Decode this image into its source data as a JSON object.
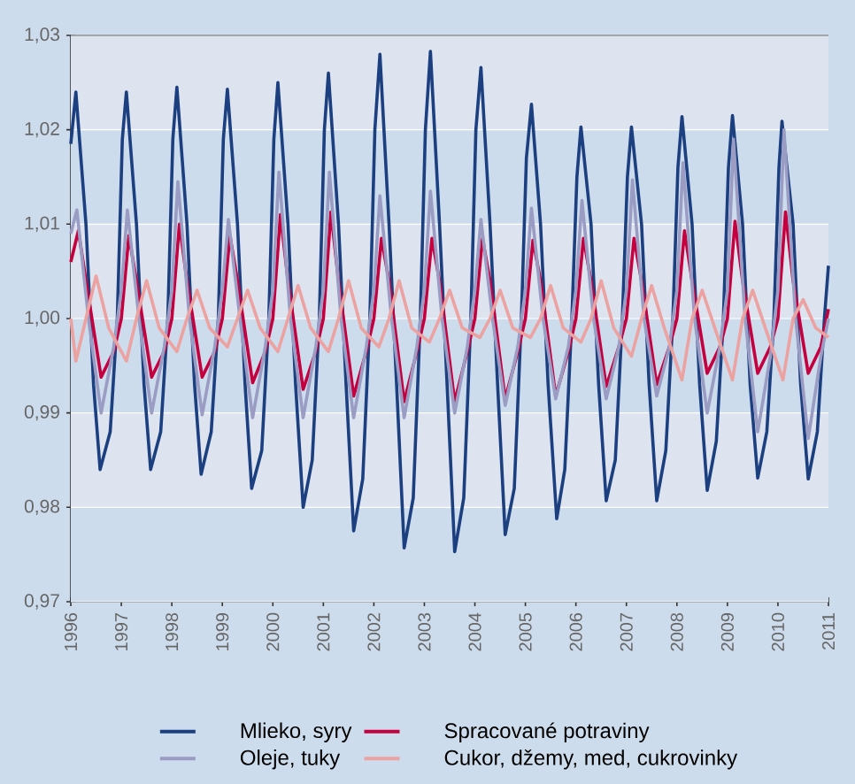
{
  "chart_data": {
    "type": "line",
    "xlim": [
      1996,
      2011
    ],
    "xticks": [
      1996,
      1997,
      1998,
      1999,
      2000,
      2001,
      2002,
      2003,
      2004,
      2005,
      2006,
      2007,
      2008,
      2009,
      2010,
      2011
    ],
    "ylim": [
      0.97,
      1.03
    ],
    "yticks": [
      {
        "value": 0.97,
        "label": "0,97"
      },
      {
        "value": 0.98,
        "label": "0,98"
      },
      {
        "value": 0.99,
        "label": "0,99"
      },
      {
        "value": 1.0,
        "label": "1,00"
      },
      {
        "value": 1.01,
        "label": "1,01"
      },
      {
        "value": 1.02,
        "label": "1,02"
      },
      {
        "value": 1.03,
        "label": "1,03"
      }
    ],
    "grid": "y",
    "legend": "bottom",
    "marker": "none",
    "line_style": "solid",
    "series": [
      {
        "name": "Mlieko, syry",
        "color": "#1b3f7f",
        "x": [
          1996.0,
          1996.1,
          1996.3,
          1996.45,
          1996.58,
          1996.78,
          1996.92,
          1997.02,
          1997.1,
          1997.3,
          1997.45,
          1997.58,
          1997.78,
          1997.92,
          1998.02,
          1998.1,
          1998.3,
          1998.45,
          1998.58,
          1998.78,
          1998.92,
          1999.02,
          1999.1,
          1999.3,
          1999.45,
          1999.58,
          1999.78,
          1999.92,
          2000.02,
          2000.1,
          2000.3,
          2000.45,
          2000.6,
          2000.78,
          2000.92,
          2001.02,
          2001.1,
          2001.3,
          2001.45,
          2001.6,
          2001.78,
          2001.92,
          2002.02,
          2002.12,
          2002.3,
          2002.45,
          2002.6,
          2002.78,
          2002.92,
          2003.02,
          2003.12,
          2003.3,
          2003.45,
          2003.6,
          2003.78,
          2003.92,
          2004.02,
          2004.12,
          2004.3,
          2004.45,
          2004.6,
          2004.78,
          2004.92,
          2005.02,
          2005.12,
          2005.3,
          2005.45,
          2005.62,
          2005.78,
          2005.92,
          2006.02,
          2006.1,
          2006.3,
          2006.45,
          2006.6,
          2006.78,
          2006.92,
          2007.02,
          2007.1,
          2007.3,
          2007.45,
          2007.6,
          2007.78,
          2007.92,
          2008.02,
          2008.1,
          2008.3,
          2008.45,
          2008.6,
          2008.78,
          2008.92,
          2009.02,
          2009.1,
          2009.3,
          2009.45,
          2009.6,
          2009.78,
          2009.92,
          2010.02,
          2010.08,
          2010.3,
          2010.45,
          2010.6,
          2010.78,
          2010.92,
          2011.0
        ],
        "values": [
          1.0185,
          1.024,
          1.01,
          0.993,
          0.984,
          0.988,
          1.0,
          1.019,
          1.024,
          1.01,
          0.993,
          0.984,
          0.988,
          1.0,
          1.019,
          1.0245,
          1.01,
          0.993,
          0.9835,
          0.988,
          1.0,
          1.019,
          1.0243,
          1.01,
          0.993,
          0.982,
          0.986,
          1.0,
          1.019,
          1.025,
          1.01,
          0.993,
          0.98,
          0.985,
          1.0,
          1.02,
          1.026,
          1.01,
          0.993,
          0.9775,
          0.983,
          1.0,
          1.02,
          1.028,
          1.01,
          0.993,
          0.9757,
          0.981,
          1.0,
          1.02,
          1.0283,
          1.01,
          0.993,
          0.9753,
          0.981,
          1.0,
          1.02,
          1.0266,
          1.01,
          0.993,
          0.9771,
          0.982,
          1.0,
          1.017,
          1.0227,
          1.01,
          0.993,
          0.9788,
          0.984,
          1.0,
          1.015,
          1.0203,
          1.01,
          0.993,
          0.9807,
          0.985,
          1.0,
          1.015,
          1.0203,
          1.01,
          0.993,
          0.9807,
          0.986,
          1.0,
          1.016,
          1.0214,
          1.01,
          0.993,
          0.9818,
          0.987,
          1.0,
          1.016,
          1.0215,
          1.01,
          0.993,
          0.9831,
          0.988,
          1.0,
          1.016,
          1.0209,
          1.01,
          0.993,
          0.983,
          0.988,
          1.0,
          1.0056
        ]
      },
      {
        "name": "Oleje, tuky",
        "color": "#9a9cc4",
        "x": [
          1996.0,
          1996.12,
          1996.35,
          1996.6,
          1996.85,
          1997.0,
          1997.12,
          1997.35,
          1997.6,
          1997.85,
          1998.0,
          1998.12,
          1998.35,
          1998.6,
          1998.85,
          1999.0,
          1999.12,
          1999.35,
          1999.6,
          1999.85,
          2000.0,
          2000.12,
          2000.35,
          2000.6,
          2000.85,
          2001.0,
          2001.12,
          2001.35,
          2001.6,
          2001.85,
          2002.0,
          2002.12,
          2002.35,
          2002.6,
          2002.85,
          2003.0,
          2003.12,
          2003.35,
          2003.6,
          2003.85,
          2004.0,
          2004.12,
          2004.35,
          2004.6,
          2004.85,
          2005.0,
          2005.12,
          2005.35,
          2005.6,
          2005.85,
          2006.0,
          2006.12,
          2006.35,
          2006.6,
          2006.85,
          2007.0,
          2007.12,
          2007.35,
          2007.6,
          2007.85,
          2008.0,
          2008.12,
          2008.35,
          2008.6,
          2008.85,
          2009.0,
          2009.12,
          2009.35,
          2009.6,
          2009.85,
          2010.0,
          2010.12,
          2010.35,
          2010.6,
          2010.85,
          2011.0
        ],
        "values": [
          1.009,
          1.0115,
          1.0,
          0.99,
          0.997,
          1.003,
          1.0115,
          1.0,
          0.99,
          0.997,
          1.003,
          1.0145,
          1.0,
          0.9898,
          0.997,
          1.003,
          1.0105,
          1.0,
          0.9895,
          0.997,
          1.003,
          1.0155,
          1.0,
          0.9895,
          0.997,
          1.003,
          1.0155,
          1.0,
          0.9895,
          0.997,
          1.003,
          1.013,
          1.0,
          0.9895,
          0.997,
          1.003,
          1.0135,
          1.0,
          0.99,
          0.997,
          1.003,
          1.0105,
          1.0,
          0.9908,
          0.997,
          1.003,
          1.0117,
          1.0,
          0.9915,
          0.997,
          1.003,
          1.0125,
          1.0,
          0.9915,
          0.997,
          1.003,
          1.0147,
          1.0,
          0.9918,
          0.997,
          1.003,
          1.0165,
          1.0,
          0.99,
          0.997,
          1.003,
          1.019,
          1.0,
          0.988,
          0.996,
          1.003,
          1.02,
          1.0,
          0.9873,
          0.996,
          1.0
        ]
      },
      {
        "name": "Spracované potraviny",
        "color": "#c4003f",
        "x": [
          1996.0,
          1996.15,
          1996.3,
          1996.6,
          1996.85,
          1997.0,
          1997.15,
          1997.3,
          1997.6,
          1997.85,
          1998.0,
          1998.15,
          1998.3,
          1998.6,
          1998.85,
          1999.0,
          1999.15,
          1999.3,
          1999.6,
          1999.85,
          2000.0,
          2000.15,
          2000.3,
          2000.6,
          2000.85,
          2001.0,
          2001.15,
          2001.3,
          2001.6,
          2001.85,
          2002.0,
          2002.15,
          2002.3,
          2002.6,
          2002.85,
          2003.0,
          2003.15,
          2003.3,
          2003.6,
          2003.85,
          2004.0,
          2004.15,
          2004.3,
          2004.6,
          2004.85,
          2005.0,
          2005.15,
          2005.3,
          2005.6,
          2005.85,
          2006.0,
          2006.15,
          2006.3,
          2006.6,
          2006.85,
          2007.0,
          2007.15,
          2007.3,
          2007.6,
          2007.85,
          2008.0,
          2008.15,
          2008.3,
          2008.6,
          2008.85,
          2009.0,
          2009.15,
          2009.3,
          2009.6,
          2009.85,
          2010.0,
          2010.15,
          2010.3,
          2010.6,
          2010.85,
          2011.0
        ],
        "values": [
          1.006,
          1.0093,
          1.004,
          0.9938,
          0.9965,
          1.0,
          1.0088,
          1.004,
          0.9938,
          0.9965,
          1.0,
          1.01,
          1.004,
          0.9938,
          0.9965,
          1.0,
          1.0088,
          1.004,
          0.9932,
          0.9965,
          1.0,
          1.011,
          1.004,
          0.9925,
          0.9965,
          1.0,
          1.0113,
          1.004,
          0.9918,
          0.9965,
          1.0,
          1.0085,
          1.004,
          0.9912,
          0.9965,
          1.0,
          1.0085,
          1.004,
          0.9912,
          0.9965,
          1.0,
          1.0085,
          1.004,
          0.9915,
          0.9965,
          1.0,
          1.0083,
          1.004,
          0.9918,
          0.9965,
          1.0,
          1.0085,
          1.004,
          0.9928,
          0.997,
          1.0,
          1.0085,
          1.004,
          0.993,
          0.997,
          1.0,
          1.0093,
          1.004,
          0.9942,
          0.997,
          1.0,
          1.0103,
          1.004,
          0.9942,
          0.997,
          1.0,
          1.0113,
          1.004,
          0.9942,
          0.997,
          1.001
        ]
      },
      {
        "name": "Cukor, džemy, med, cukrovinky",
        "color": "#eba2a0",
        "x": [
          1996.0,
          1996.1,
          1996.3,
          1996.5,
          1996.75,
          1997.1,
          1997.3,
          1997.5,
          1997.75,
          1998.1,
          1998.3,
          1998.5,
          1998.75,
          1999.1,
          1999.3,
          1999.5,
          1999.75,
          2000.1,
          2000.3,
          2000.5,
          2000.75,
          2001.1,
          2001.3,
          2001.5,
          2001.75,
          2002.1,
          2002.3,
          2002.5,
          2002.75,
          2003.1,
          2003.3,
          2003.5,
          2003.75,
          2004.1,
          2004.3,
          2004.5,
          2004.75,
          2005.1,
          2005.3,
          2005.5,
          2005.75,
          2006.1,
          2006.3,
          2006.5,
          2006.75,
          2007.1,
          2007.3,
          2007.5,
          2007.75,
          2008.1,
          2008.3,
          2008.5,
          2008.75,
          2009.1,
          2009.3,
          2009.5,
          2009.75,
          2010.1,
          2010.3,
          2010.5,
          2010.75,
          2011.0
        ],
        "values": [
          1.0,
          0.9955,
          1.0,
          1.0045,
          0.999,
          0.9955,
          1.0,
          1.004,
          0.999,
          0.9965,
          1.0,
          1.003,
          0.999,
          0.997,
          1.0,
          1.003,
          0.999,
          0.9965,
          1.0,
          1.0035,
          0.999,
          0.9965,
          1.0,
          1.004,
          0.999,
          0.997,
          1.0,
          1.004,
          0.999,
          0.9975,
          1.0,
          1.003,
          0.999,
          0.998,
          1.0,
          1.003,
          0.999,
          0.998,
          1.0,
          1.0035,
          0.999,
          0.9975,
          1.0,
          1.004,
          0.999,
          0.996,
          1.0,
          1.0035,
          0.999,
          0.9935,
          1.0,
          1.003,
          0.999,
          0.9935,
          1.0,
          1.003,
          0.999,
          0.9935,
          1.0,
          1.002,
          0.999,
          0.998
        ]
      }
    ]
  }
}
